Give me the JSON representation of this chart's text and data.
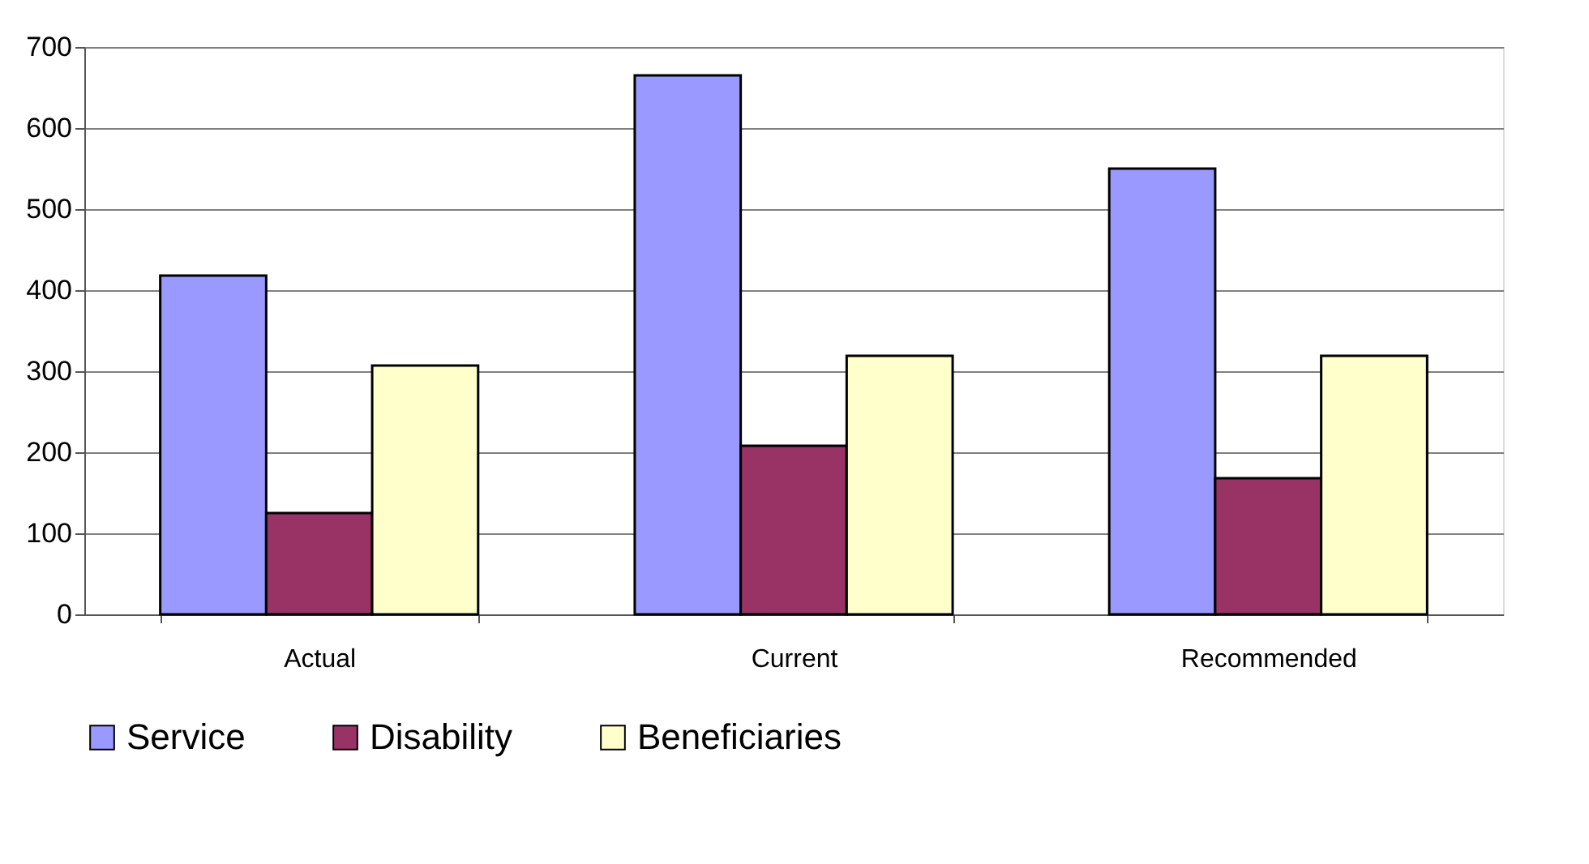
{
  "chart_data": {
    "type": "bar",
    "categories": [
      "Actual",
      "Current",
      "Recommended"
    ],
    "series": [
      {
        "name": "Service",
        "color": "#9999ff",
        "values": [
          418,
          665,
          550
        ]
      },
      {
        "name": "Disability",
        "color": "#993366",
        "values": [
          125,
          208,
          168
        ]
      },
      {
        "name": "Beneficiaries",
        "color": "#ffffcc",
        "values": [
          307,
          319,
          319
        ]
      }
    ],
    "ylim": [
      0,
      700
    ],
    "yticks": [
      0,
      100,
      200,
      300,
      400,
      500,
      600,
      700
    ],
    "grid": "y",
    "legend": "bottom"
  }
}
